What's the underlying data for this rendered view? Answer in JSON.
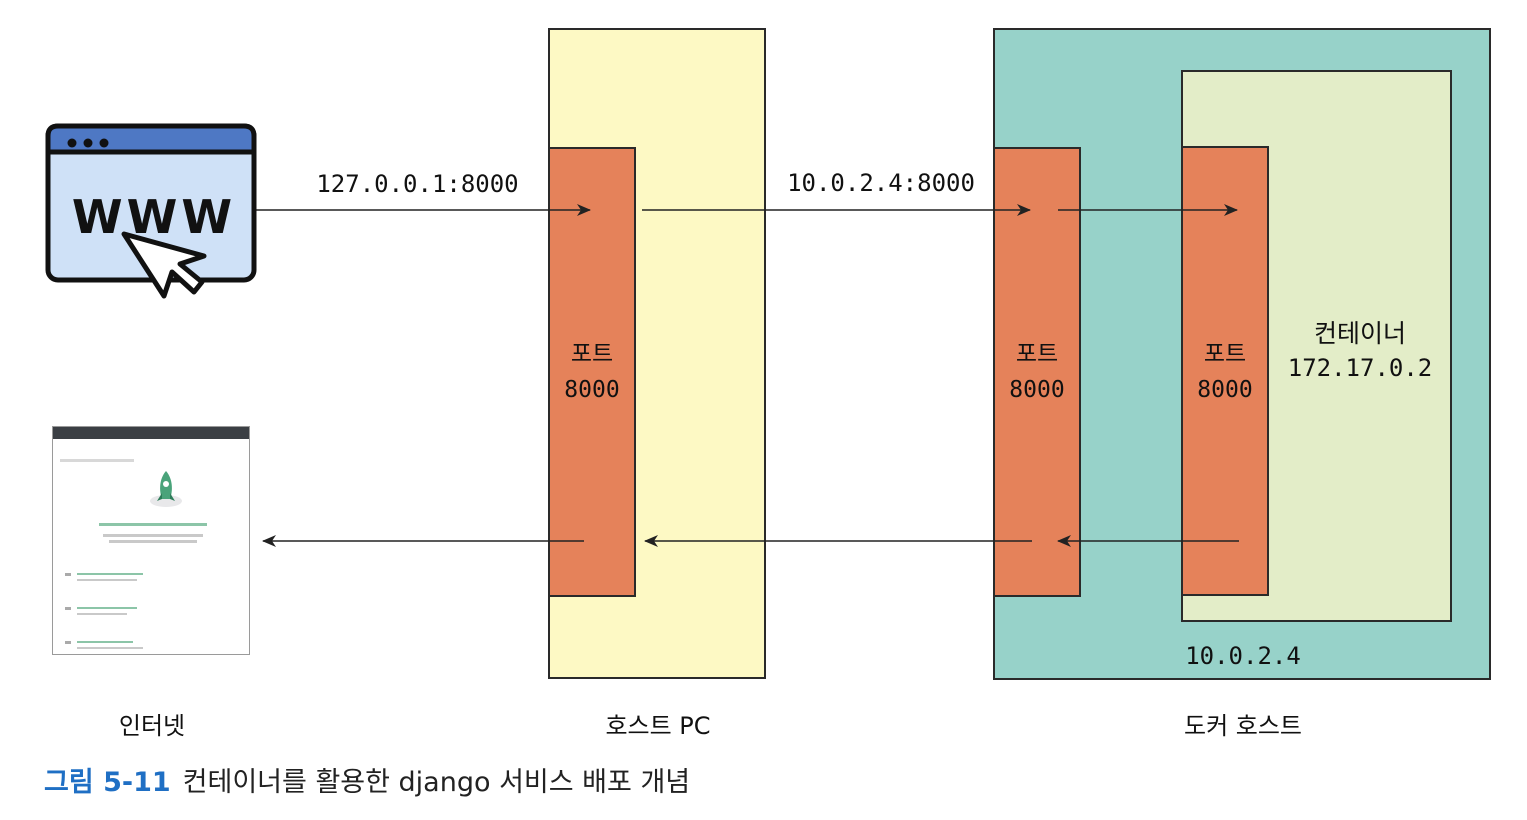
{
  "edge_labels": {
    "host_ip_port": "127.0.0.1:8000",
    "docker_ip_port": "10.0.2.4:8000"
  },
  "ports": [
    {
      "label": "포트",
      "number": "8000"
    },
    {
      "label": "포트",
      "number": "8000"
    },
    {
      "label": "포트",
      "number": "8000"
    }
  ],
  "container": {
    "label": "컨테이너",
    "ip": "172.17.0.2"
  },
  "docker_host_ip": "10.0.2.4",
  "column_labels": {
    "internet": "인터넷",
    "host_pc": "호스트 PC",
    "docker_host": "도커 호스트"
  },
  "browser_icon": {
    "icon": "www-browser-icon",
    "text": "WWW"
  },
  "caption": {
    "number": "그림 5-11",
    "text": "컨테이너를 활용한 django 서비스 배포 개념"
  },
  "colors": {
    "host_pc_bg": "#fdf9c4",
    "docker_bg": "#97d2c9",
    "container_bg": "#e3edc8",
    "port_bg": "#e5825a",
    "caption_number": "#1f6fc4"
  }
}
